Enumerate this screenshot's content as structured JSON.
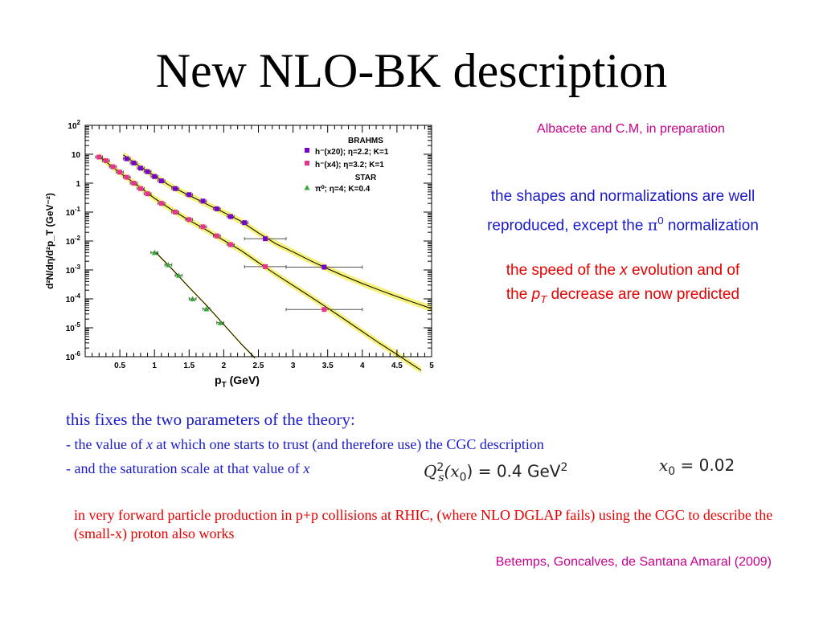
{
  "slide": {
    "title": "New NLO-BK description",
    "credit_top": "Albacete and C.M, in preparation",
    "shapes_text": {
      "line1": "the shapes and normalizations are well",
      "line2_pre": "reproduced, except the ",
      "pi": "π",
      "pi_sup": "0",
      "line2_post": " normalization"
    },
    "speed_text": {
      "line1_pre": "the speed of the ",
      "x": "x",
      "line1_post": " evolution and of",
      "line2_pre": "the ",
      "p": "p",
      "p_sub": "T",
      "line2_post": " decrease are now predicted"
    },
    "fixes_text": "this fixes the two parameters of the theory:",
    "item1": {
      "pre": "- the value of ",
      "x": "x",
      "post": " at which one starts to trust (and therefore use) the CGC description"
    },
    "item2": {
      "pre": "- and the saturation scale at that value of ",
      "x": "x"
    },
    "formula1": {
      "Q": "Q",
      "sub": "s",
      "sup": "2",
      "arg": "(x",
      "arg_sub": "0",
      "arg_close": ")",
      "rhs": " = 0.4 GeV",
      "rhs_sup": "2"
    },
    "formula2": {
      "x": "x",
      "sub": "0",
      "rhs": " = 0.02"
    },
    "forward_text": "in very forward particle production in p+p collisions at RHIC, (where NLO DGLAP fails) using the CGC to describe the (small-x) proton also works",
    "credit_bottom": "Betemps, Goncalves, de Santana Amaral (2009)"
  },
  "chart_data": {
    "type": "scatter",
    "xlabel": "p_T (GeV)",
    "ylabel": "d²N/dη/d²p_T (GeV⁻²)",
    "xlim": [
      0,
      5
    ],
    "ylim_log10": [
      -6,
      2
    ],
    "log_y": true,
    "x_ticks": [
      "0.5",
      "1",
      "1.5",
      "2",
      "2.5",
      "3",
      "3.5",
      "4",
      "4.5",
      "5"
    ],
    "y_ticks": [
      "10^2",
      "10",
      "1",
      "10^-1",
      "10^-2",
      "10^-3",
      "10^-4",
      "10^-5",
      "10^-6"
    ],
    "legend": {
      "groups": [
        {
          "header": "BRAHMS",
          "entries": [
            {
              "label": "h⁻(x20); η=2.2; K=1",
              "color": "#7a00cc",
              "marker": "square"
            },
            {
              "label": "h⁻(x4); η=3.2; K=1",
              "color": "#e6338c",
              "marker": "square"
            }
          ]
        },
        {
          "header": "STAR",
          "entries": [
            {
              "label": "π⁰; η=4; K=0.4",
              "color": "#33aa33",
              "marker": "triangle"
            }
          ]
        }
      ]
    },
    "series": [
      {
        "name": "h⁻(x20); η=2.2; K=1",
        "color": "#7a00cc",
        "marker": "square",
        "points": [
          {
            "x": 0.6,
            "y": 7.0
          },
          {
            "x": 0.7,
            "y": 5.0
          },
          {
            "x": 0.8,
            "y": 3.3
          },
          {
            "x": 0.9,
            "y": 2.5
          },
          {
            "x": 1.0,
            "y": 1.7
          },
          {
            "x": 1.1,
            "y": 1.2
          },
          {
            "x": 1.3,
            "y": 0.65
          },
          {
            "x": 1.5,
            "y": 0.4
          },
          {
            "x": 1.7,
            "y": 0.24
          },
          {
            "x": 1.9,
            "y": 0.13
          },
          {
            "x": 2.1,
            "y": 0.07
          },
          {
            "x": 2.3,
            "y": 0.043
          },
          {
            "x": 2.6,
            "y": 0.012,
            "xerr": 0.3
          },
          {
            "x": 3.45,
            "y": 0.00125,
            "xerr": 0.55
          }
        ],
        "curve": [
          [
            0.55,
            9.5
          ],
          [
            0.8,
            3.6
          ],
          [
            1.0,
            1.75
          ],
          [
            1.25,
            0.75
          ],
          [
            1.5,
            0.38
          ],
          [
            1.75,
            0.19
          ],
          [
            2.0,
            0.097
          ],
          [
            2.25,
            0.048
          ],
          [
            2.5,
            0.019
          ],
          [
            2.75,
            0.0081
          ],
          [
            3.0,
            0.0042
          ],
          [
            3.25,
            0.0021
          ],
          [
            3.5,
            0.0011
          ],
          [
            3.75,
            0.0006
          ],
          [
            4.0,
            0.00034
          ],
          [
            4.25,
            0.0002
          ],
          [
            4.5,
            0.00012
          ],
          [
            4.75,
            7.4e-05
          ],
          [
            5.0,
            4.6e-05
          ]
        ]
      },
      {
        "name": "h⁻(x4); η=3.2; K=1",
        "color": "#e6338c",
        "marker": "square",
        "points": [
          {
            "x": 0.2,
            "y": 8.0
          },
          {
            "x": 0.3,
            "y": 6.0
          },
          {
            "x": 0.4,
            "y": 3.7
          },
          {
            "x": 0.5,
            "y": 2.4
          },
          {
            "x": 0.6,
            "y": 1.6
          },
          {
            "x": 0.7,
            "y": 1.0
          },
          {
            "x": 0.8,
            "y": 0.65
          },
          {
            "x": 0.9,
            "y": 0.43
          },
          {
            "x": 1.1,
            "y": 0.2
          },
          {
            "x": 1.3,
            "y": 0.1
          },
          {
            "x": 1.5,
            "y": 0.055
          },
          {
            "x": 1.7,
            "y": 0.031
          },
          {
            "x": 1.9,
            "y": 0.015
          },
          {
            "x": 2.1,
            "y": 0.0075
          },
          {
            "x": 2.6,
            "y": 0.0013,
            "xerr": 0.3
          },
          {
            "x": 3.45,
            "y": 4.3e-05,
            "xerr": 0.55
          }
        ],
        "curve": [
          [
            0.2,
            8.5
          ],
          [
            0.5,
            2.3
          ],
          [
            0.75,
            0.85
          ],
          [
            1.0,
            0.3
          ],
          [
            1.25,
            0.12
          ],
          [
            1.5,
            0.052
          ],
          [
            1.75,
            0.024
          ],
          [
            2.0,
            0.0105
          ],
          [
            2.25,
            0.0047
          ],
          [
            2.5,
            0.0018
          ],
          [
            2.75,
            0.00071
          ],
          [
            3.0,
            0.00029
          ],
          [
            3.25,
            0.00012
          ],
          [
            3.5,
            4.8e-05
          ],
          [
            3.75,
            1.9e-05
          ],
          [
            4.0,
            7.4e-06
          ],
          [
            4.25,
            2.9e-06
          ],
          [
            4.5,
            1.2e-06
          ],
          [
            4.75,
            4.8e-07
          ],
          [
            4.85,
            3.4e-07
          ]
        ]
      },
      {
        "name": "π⁰; η=4; K=0.4",
        "color": "#33aa33",
        "marker": "triangle",
        "points": [
          {
            "x": 1.0,
            "y": 0.004
          },
          {
            "x": 1.2,
            "y": 0.0015
          },
          {
            "x": 1.35,
            "y": 0.00065
          },
          {
            "x": 1.55,
            "y": 0.0001
          },
          {
            "x": 1.75,
            "y": 4.5e-05
          },
          {
            "x": 1.95,
            "y": 1.5e-05
          }
        ],
        "curve": [
          [
            1.0,
            0.0045
          ],
          [
            1.25,
            0.0011
          ],
          [
            1.5,
            0.00025
          ],
          [
            1.75,
            6e-05
          ],
          [
            2.0,
            1.3e-05
          ],
          [
            2.25,
            2.8e-06
          ],
          [
            2.45,
            9e-07
          ]
        ]
      }
    ]
  }
}
